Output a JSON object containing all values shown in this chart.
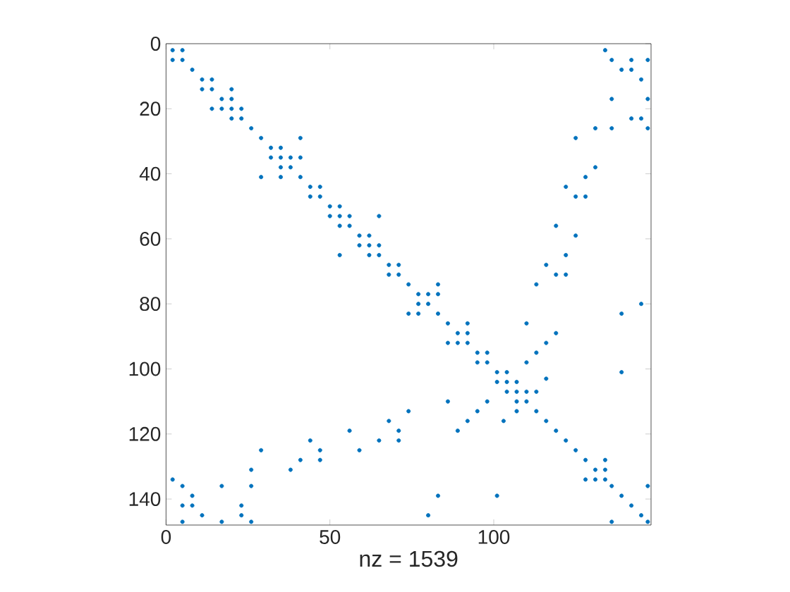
{
  "chart_data": {
    "type": "scatter",
    "xlabel": "nz = 1539",
    "xlim": [
      0,
      148
    ],
    "ylim": [
      148,
      0
    ],
    "xticks": [
      0,
      50,
      100
    ],
    "yticks": [
      0,
      20,
      40,
      60,
      80,
      100,
      120,
      140
    ],
    "marker": "circle",
    "series": [
      {
        "color": "#0072bd",
        "x": [
          2,
          5,
          2,
          5,
          8,
          11,
          14,
          11,
          14,
          17,
          20,
          17,
          20,
          20,
          14,
          23,
          23,
          20,
          26,
          29,
          41,
          32,
          35,
          32,
          35,
          38,
          35,
          38,
          41,
          35,
          29,
          41,
          44,
          47,
          44,
          47,
          50,
          53,
          50,
          53,
          56,
          53,
          56,
          65,
          53,
          59,
          62,
          59,
          62,
          65,
          62,
          65,
          68,
          71,
          68,
          71,
          74,
          83,
          77,
          80,
          77,
          80,
          83,
          74,
          77,
          83,
          86,
          92,
          89,
          92,
          89,
          92,
          86,
          95,
          98,
          95,
          98,
          101,
          104,
          101,
          104,
          107,
          104,
          107,
          110,
          107,
          110,
          107,
          113,
          113,
          116,
          119,
          122,
          125,
          128,
          131,
          134,
          131,
          134,
          128,
          134,
          136,
          139,
          142,
          145,
          147,
          136,
          147,
          134,
          136,
          142,
          142,
          139,
          145,
          147,
          136,
          147,
          142,
          145,
          136,
          147,
          131,
          125,
          131,
          128,
          122,
          125,
          128,
          119,
          125,
          122,
          116,
          119,
          122,
          113,
          145,
          139,
          110,
          119,
          116,
          113,
          110,
          139,
          116,
          2,
          5,
          5,
          8,
          8,
          11,
          5,
          17,
          17,
          23,
          23,
          26,
          26,
          26,
          29,
          38,
          41,
          44,
          47,
          47,
          56,
          59,
          65,
          68,
          71,
          71,
          74,
          80,
          83,
          86,
          89,
          92,
          95,
          98,
          101,
          103
        ],
        "values": [
          2,
          2,
          5,
          5,
          8,
          11,
          11,
          14,
          14,
          17,
          17,
          20,
          20,
          14,
          20,
          20,
          23,
          23,
          26,
          29,
          29,
          32,
          32,
          35,
          35,
          35,
          38,
          38,
          35,
          41,
          41,
          41,
          44,
          44,
          47,
          47,
          50,
          50,
          53,
          53,
          53,
          56,
          56,
          53,
          65,
          59,
          59,
          62,
          62,
          62,
          65,
          65,
          68,
          68,
          71,
          71,
          74,
          74,
          77,
          77,
          80,
          80,
          77,
          83,
          83,
          83,
          86,
          86,
          89,
          89,
          92,
          92,
          92,
          95,
          95,
          98,
          98,
          101,
          101,
          104,
          104,
          104,
          107,
          107,
          107,
          110,
          110,
          113,
          107,
          113,
          116,
          119,
          122,
          125,
          128,
          131,
          131,
          134,
          134,
          134,
          128,
          136,
          139,
          142,
          145,
          147,
          147,
          136,
          2,
          5,
          5,
          8,
          8,
          11,
          5,
          17,
          17,
          23,
          23,
          26,
          26,
          26,
          29,
          38,
          41,
          44,
          47,
          47,
          56,
          59,
          65,
          68,
          71,
          71,
          74,
          80,
          83,
          86,
          89,
          92,
          95,
          98,
          101,
          103,
          134,
          136,
          142,
          142,
          139,
          145,
          147,
          136,
          147,
          142,
          145,
          136,
          147,
          131,
          125,
          131,
          128,
          122,
          125,
          128,
          119,
          125,
          122,
          116,
          119,
          122,
          113,
          145,
          139,
          110,
          119,
          116,
          113,
          110,
          139,
          116
        ]
      }
    ]
  }
}
